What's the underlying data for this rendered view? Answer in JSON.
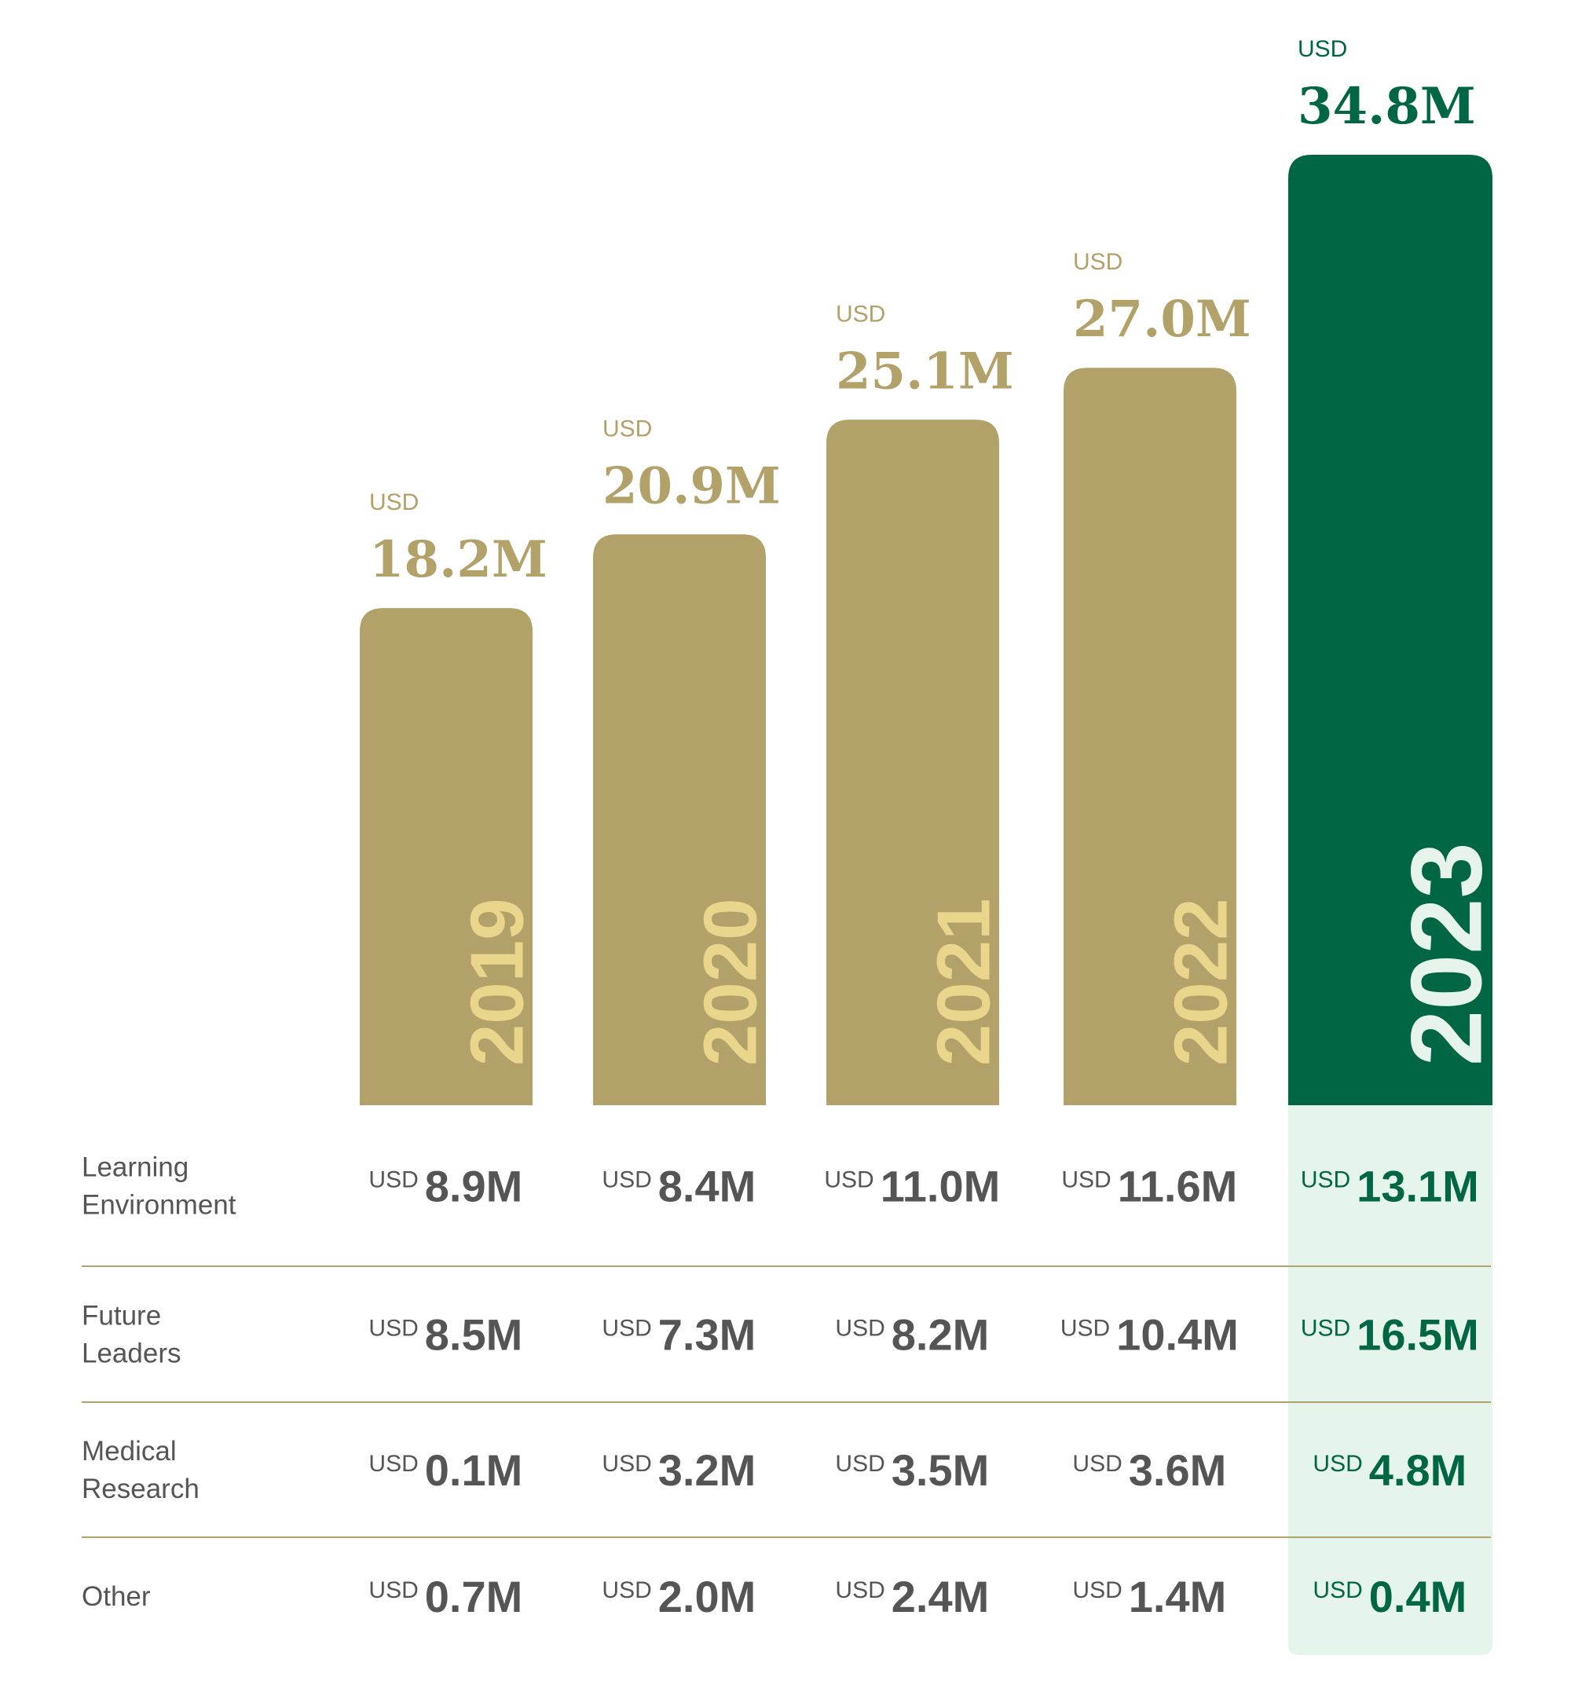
{
  "chart_data": {
    "type": "bar",
    "title": "",
    "xlabel": "",
    "ylabel": "",
    "currency_label": "USD",
    "categories": [
      "2019",
      "2020",
      "2021",
      "2022",
      "2023"
    ],
    "values": [
      18.2,
      20.9,
      25.1,
      27.0,
      34.8
    ],
    "value_labels": [
      "18.2M",
      "20.9M",
      "25.1M",
      "27.0M",
      "34.8M"
    ],
    "ylim": [
      0,
      34.8
    ],
    "grid": false,
    "highlight_category": "2023",
    "colors": {
      "bar": "#B3A16A",
      "bar_highlight": "#006643",
      "year_text": "#E9D58C",
      "year_text_highlight": "#E6F4EC",
      "value_text": "#B3A16A",
      "value_text_highlight": "#006643",
      "table_text": "#555555",
      "table_text_highlight": "#006643",
      "table_highlight_bg": "#E6F5EC",
      "divider": "#B3A16A"
    },
    "breakdown": {
      "rows": [
        {
          "label": [
            "Learning",
            "Environment"
          ],
          "values": [
            8.9,
            8.4,
            11.0,
            11.6,
            13.1
          ],
          "value_labels": [
            "8.9M",
            "8.4M",
            "11.0M",
            "11.6M",
            "13.1M"
          ]
        },
        {
          "label": [
            "Future",
            "Leaders"
          ],
          "values": [
            8.5,
            7.3,
            8.2,
            10.4,
            16.5
          ],
          "value_labels": [
            "8.5M",
            "7.3M",
            "8.2M",
            "10.4M",
            "16.5M"
          ]
        },
        {
          "label": [
            "Medical",
            "Research"
          ],
          "values": [
            0.1,
            3.2,
            3.5,
            3.6,
            4.8
          ],
          "value_labels": [
            "0.1M",
            "3.2M",
            "3.5M",
            "3.6M",
            "4.8M"
          ]
        },
        {
          "label": [
            "Other"
          ],
          "values": [
            0.7,
            2.0,
            2.4,
            1.4,
            0.4
          ],
          "value_labels": [
            "0.7M",
            "2.0M",
            "2.4M",
            "1.4M",
            "0.4M"
          ]
        }
      ]
    }
  }
}
